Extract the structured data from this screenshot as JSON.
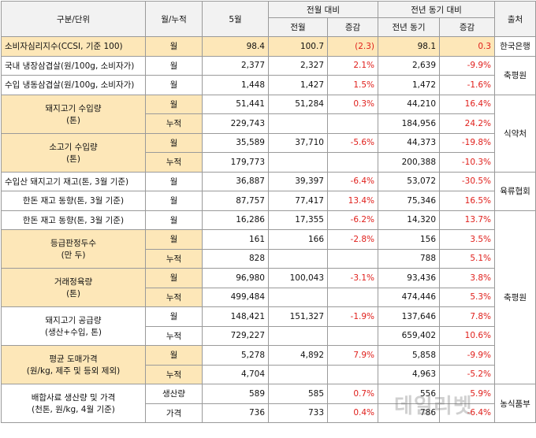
{
  "header": {
    "category": "구분/단위",
    "unit": "월/누적",
    "may": "5월",
    "mom_group": "전월 대비",
    "yoy_group": "전년 동기 대비",
    "source": "출처",
    "prev_month": "전월",
    "change": "증감",
    "prev_year": "전년 동기",
    "change2": "증감"
  },
  "rows": [
    {
      "cat": "소비자심리지수(CCSI, 기준 100)",
      "unit": "월",
      "may": "98.4",
      "prev": "100.7",
      "chg": "(2.3)",
      "py": "98.1",
      "chg2": "0.3"
    },
    {
      "cat": "국내 냉장삼겹살(원/100g, 소비자가)",
      "unit": "월",
      "may": "2,377",
      "prev": "2,327",
      "chg": "2.1%",
      "py": "2,639",
      "chg2": "-9.9%"
    },
    {
      "cat": "수입 냉동삼겹살(원/100g, 소비자가)",
      "unit": "월",
      "may": "1,448",
      "prev": "1,427",
      "chg": "1.5%",
      "py": "1,472",
      "chg2": "-1.6%"
    },
    {
      "cat": "돼지고기 수입량",
      "cat2": "(톤)",
      "unit": "월",
      "may": "51,441",
      "prev": "51,284",
      "chg": "0.3%",
      "py": "44,210",
      "chg2": "16.4%"
    },
    {
      "unit": "누적",
      "may": "229,743",
      "prev": "",
      "chg": "",
      "py": "184,956",
      "chg2": "24.2%"
    },
    {
      "cat": "소고기 수입량",
      "cat2": "(톤)",
      "unit": "월",
      "may": "35,589",
      "prev": "37,710",
      "chg": "-5.6%",
      "py": "44,373",
      "chg2": "-19.8%"
    },
    {
      "unit": "누적",
      "may": "179,773",
      "prev": "",
      "chg": "",
      "py": "200,388",
      "chg2": "-10.3%"
    },
    {
      "cat": "수입산 돼지고기 재고(톤, 3월 기준)",
      "unit": "월",
      "may": "36,887",
      "prev": "39,397",
      "chg": "-6.4%",
      "py": "53,072",
      "chg2": "-30.5%"
    },
    {
      "cat": "한돈 재고 동향(톤, 3월 기준)",
      "unit": "월",
      "may": "87,757",
      "prev": "77,417",
      "chg": "13.4%",
      "py": "75,346",
      "chg2": "16.5%"
    },
    {
      "cat": "한돈 재고 동향(톤, 3월 기준)",
      "unit": "월",
      "may": "16,286",
      "prev": "17,355",
      "chg": "-6.2%",
      "py": "14,320",
      "chg2": "13.7%"
    },
    {
      "cat": "등급판정두수",
      "cat2": "(만 두)",
      "unit": "월",
      "may": "161",
      "prev": "166",
      "chg": "-2.8%",
      "py": "156",
      "chg2": "3.5%"
    },
    {
      "unit": "누적",
      "may": "828",
      "prev": "",
      "chg": "",
      "py": "788",
      "chg2": "5.1%"
    },
    {
      "cat": "거래정육량",
      "cat2": "(톤)",
      "unit": "월",
      "may": "96,980",
      "prev": "100,043",
      "chg": "-3.1%",
      "py": "93,436",
      "chg2": "3.8%"
    },
    {
      "unit": "누적",
      "may": "499,484",
      "prev": "",
      "chg": "",
      "py": "474,446",
      "chg2": "5.3%"
    },
    {
      "cat": "돼지고기 공급량",
      "cat2": "(생산+수입, 톤)",
      "unit": "월",
      "may": "148,421",
      "prev": "151,327",
      "chg": "-1.9%",
      "py": "137,646",
      "chg2": "7.8%"
    },
    {
      "unit": "누적",
      "may": "729,227",
      "prev": "",
      "chg": "",
      "py": "659,402",
      "chg2": "10.6%"
    },
    {
      "cat": "평균 도매가격",
      "cat2": "(원/kg, 제주 및 등외 제외)",
      "unit": "월",
      "may": "5,278",
      "prev": "4,892",
      "chg": "7.9%",
      "py": "5,858",
      "chg2": "-9.9%"
    },
    {
      "unit": "누적",
      "may": "4,704",
      "prev": "",
      "chg": "",
      "py": "4,963",
      "chg2": "-5.2%"
    },
    {
      "cat": "배합사료 생산량 및 가격",
      "cat2": "(천톤, 원/kg, 4월 기준)",
      "unit": "생산량",
      "may": "589",
      "prev": "585",
      "chg": "0.7%",
      "py": "556",
      "chg2": "5.9%"
    },
    {
      "unit": "가격",
      "may": "736",
      "prev": "733",
      "chg": "0.4%",
      "py": "786",
      "chg2": "-6.4%"
    }
  ],
  "sources": {
    "bok": "한국은행",
    "ekape1": "축평원",
    "mfds": "식약처",
    "meat_assoc": "육류협회",
    "ekape2": "축평원",
    "nonghyup": "농식품부"
  },
  "watermark": "데일리벳"
}
